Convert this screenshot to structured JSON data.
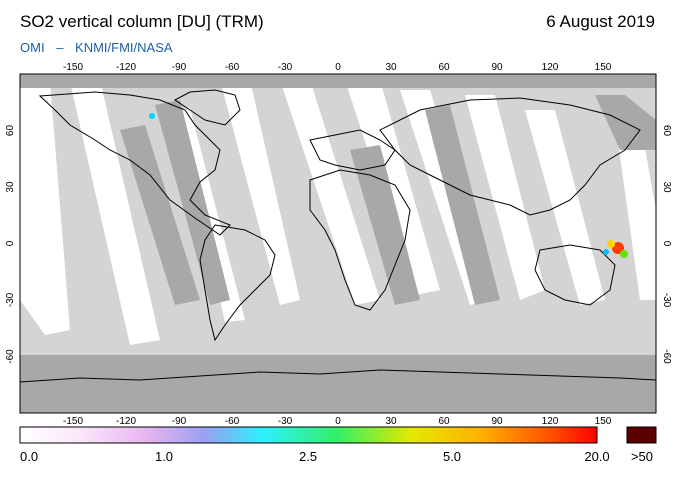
{
  "header": {
    "title": "SO2 vertical column [DU] (TRM)",
    "date": "6 August 2019",
    "credit_left": "OMI",
    "credit_sep": "–",
    "credit_right": "KNMI/FMI/NASA"
  },
  "map": {
    "lon_ticks": [
      "-150",
      "-120",
      "-90",
      "-60",
      "-30",
      "0",
      "30",
      "60",
      "90",
      "120",
      "150"
    ],
    "lat_ticks": [
      "60",
      "30",
      "0",
      "-30",
      "-60"
    ],
    "colors": {
      "ocean_gap": "#ffffff",
      "swath_light": "#d4d4d4",
      "swath_dark": "#a8a8a8",
      "coast": "#000000"
    }
  },
  "colorbar": {
    "labels": [
      "0.0",
      "1.0",
      "2.5",
      "5.0",
      "20.0",
      ">50"
    ],
    "overflow_color": "#5a0000"
  }
}
